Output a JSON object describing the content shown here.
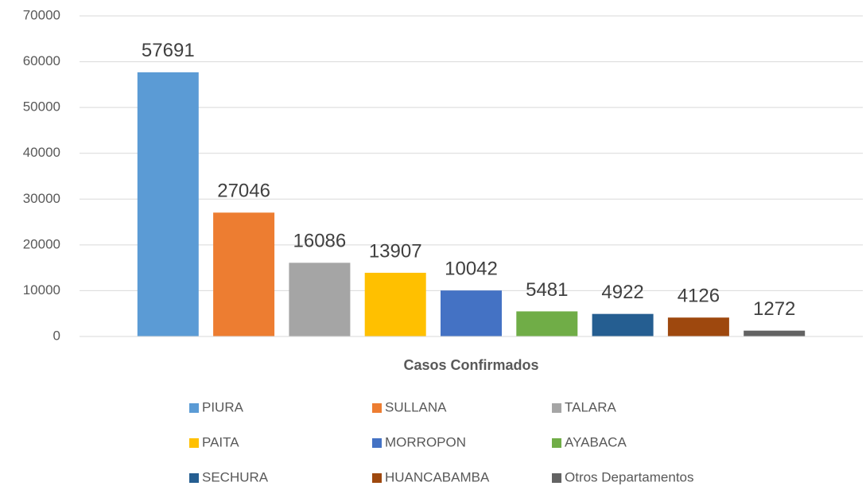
{
  "chart_data": {
    "type": "bar",
    "categories": [
      "Casos Confirmados"
    ],
    "series": [
      {
        "name": "PIURA",
        "color": "#5b9bd5",
        "values": [
          57691
        ]
      },
      {
        "name": "SULLANA",
        "color": "#ed7d31",
        "values": [
          27046
        ]
      },
      {
        "name": "TALARA",
        "color": "#a5a5a5",
        "values": [
          16086
        ]
      },
      {
        "name": "PAITA",
        "color": "#ffc000",
        "values": [
          13907
        ]
      },
      {
        "name": "MORROPON",
        "color": "#4472c4",
        "values": [
          10042
        ]
      },
      {
        "name": "AYABACA",
        "color": "#70ad47",
        "values": [
          5481
        ]
      },
      {
        "name": "SECHURA",
        "color": "#255e91",
        "values": [
          4922
        ]
      },
      {
        "name": "HUANCABAMBA",
        "color": "#9e480e",
        "values": [
          4126
        ]
      },
      {
        "name": "Otros Departamentos",
        "color": "#636363",
        "values": [
          1272
        ]
      }
    ],
    "ylim": [
      0,
      70000
    ],
    "yticks": [
      0,
      10000,
      20000,
      30000,
      40000,
      50000,
      60000,
      70000
    ],
    "grid": true,
    "legend": "bottom"
  }
}
